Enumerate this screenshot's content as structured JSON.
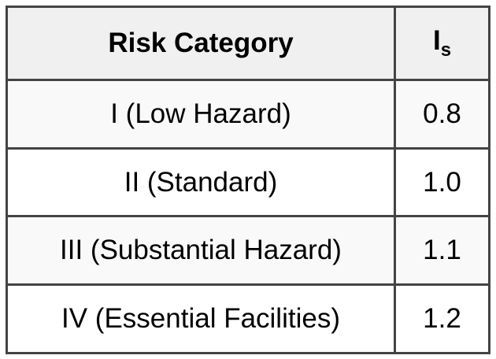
{
  "table": {
    "headers": {
      "category": "Risk Category",
      "factor_main": "I",
      "factor_sub": "s"
    },
    "rows": [
      {
        "category": "I (Low Hazard)",
        "value": "0.8"
      },
      {
        "category": "II (Standard)",
        "value": "1.0"
      },
      {
        "category": "III (Substantial Hazard)",
        "value": "1.1"
      },
      {
        "category": "IV (Essential Facilities)",
        "value": "1.2"
      }
    ]
  }
}
